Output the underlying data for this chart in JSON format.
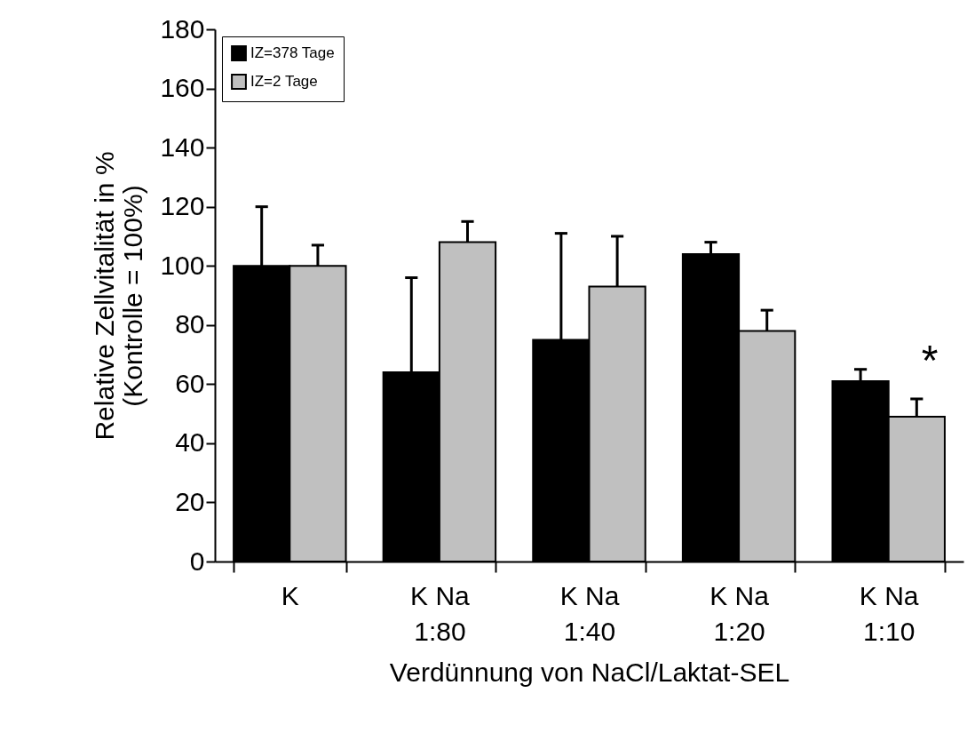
{
  "chart_data": {
    "type": "bar",
    "xlabel": "Verdünnung von NaCl/Laktat-SEL",
    "ylabel": "Relative Zellvitalität in %\n(Kontrolle = 100%)",
    "categories": [
      "K",
      "K Na\n1:80",
      "K Na\n1:40",
      "K Na\n1:20",
      "K Na\n1:10"
    ],
    "series": [
      {
        "name": "IZ=378 Tage",
        "color": "#000000",
        "values": [
          100,
          64,
          75,
          104,
          61
        ],
        "errors": [
          [
            100,
            120
          ],
          [
            64,
            96
          ],
          [
            75,
            111
          ],
          [
            104,
            108
          ],
          [
            61,
            65
          ]
        ]
      },
      {
        "name": "IZ=2 Tage",
        "color": "#c0c0c0",
        "values": [
          100,
          108,
          93,
          78,
          49
        ],
        "errors": [
          [
            100,
            107
          ],
          [
            108,
            115
          ],
          [
            93,
            110
          ],
          [
            78,
            85
          ],
          [
            49,
            55
          ]
        ]
      }
    ],
    "ylim": [
      0,
      180
    ],
    "yticks": [
      0,
      20,
      40,
      60,
      80,
      100,
      120,
      140,
      160,
      180
    ],
    "annotations": [
      "*"
    ],
    "legend": "top left",
    "grid": false
  }
}
